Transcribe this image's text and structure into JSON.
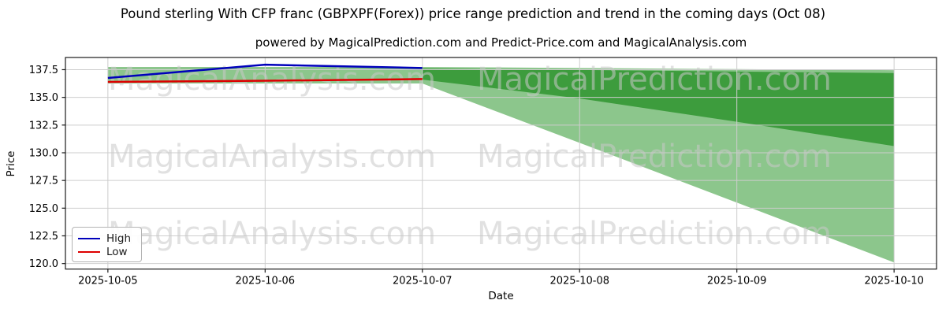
{
  "title": "Pound sterling With CFP franc (GBPXPF(Forex)) price range prediction and trend in the coming days (Oct 08)",
  "subtitle": "powered by MagicalPrediction.com and Predict-Price.com and MagicalAnalysis.com",
  "watermarks": {
    "left": "MagicalAnalysis.com",
    "right": "MagicalPrediction.com"
  },
  "chart_data": {
    "type": "line",
    "title": "Pound sterling With CFP franc (GBPXPF(Forex)) price range prediction and trend in the coming days (Oct 08)",
    "subtitle": "powered by MagicalPrediction.com and Predict-Price.com and MagicalAnalysis.com",
    "xlabel": "Date",
    "ylabel": "Price",
    "x_ticks": [
      "2025-10-05",
      "2025-10-06",
      "2025-10-07",
      "2025-10-08",
      "2025-10-09",
      "2025-10-10"
    ],
    "x_unit": "day-index (0 = 2025-10-05)",
    "y_ticks": [
      120.0,
      122.5,
      125.0,
      127.5,
      130.0,
      132.5,
      135.0,
      137.5
    ],
    "xlim": [
      -0.27,
      5.27
    ],
    "ylim": [
      119.5,
      138.6
    ],
    "grid": true,
    "legend_position": "lower left",
    "series": [
      {
        "name": "High",
        "color": "#0000bb",
        "x": [
          0,
          1,
          2
        ],
        "y": [
          136.75,
          137.95,
          137.65
        ]
      },
      {
        "name": "Low",
        "color": "#dd0000",
        "x": [
          0,
          1,
          2
        ],
        "y": [
          136.4,
          136.5,
          136.65
        ]
      }
    ],
    "bands": [
      {
        "name": "history-range",
        "color": "#8cc68c",
        "x": [
          0,
          1,
          2
        ],
        "top": [
          137.75,
          137.75,
          137.75
        ],
        "bottom": [
          136.25,
          136.25,
          136.25
        ]
      },
      {
        "name": "forecast-outer",
        "color": "#8cc68c",
        "x": [
          2,
          3,
          4,
          5
        ],
        "top": [
          137.75,
          137.65,
          137.55,
          137.45
        ],
        "bottom": [
          136.25,
          130.9,
          125.5,
          120.1
        ]
      },
      {
        "name": "forecast-inner",
        "color": "#3d9c3d",
        "x": [
          2,
          3,
          4,
          5
        ],
        "top": [
          137.6,
          137.47,
          137.33,
          137.2
        ],
        "bottom": [
          136.6,
          134.9,
          132.8,
          130.6
        ]
      }
    ]
  }
}
